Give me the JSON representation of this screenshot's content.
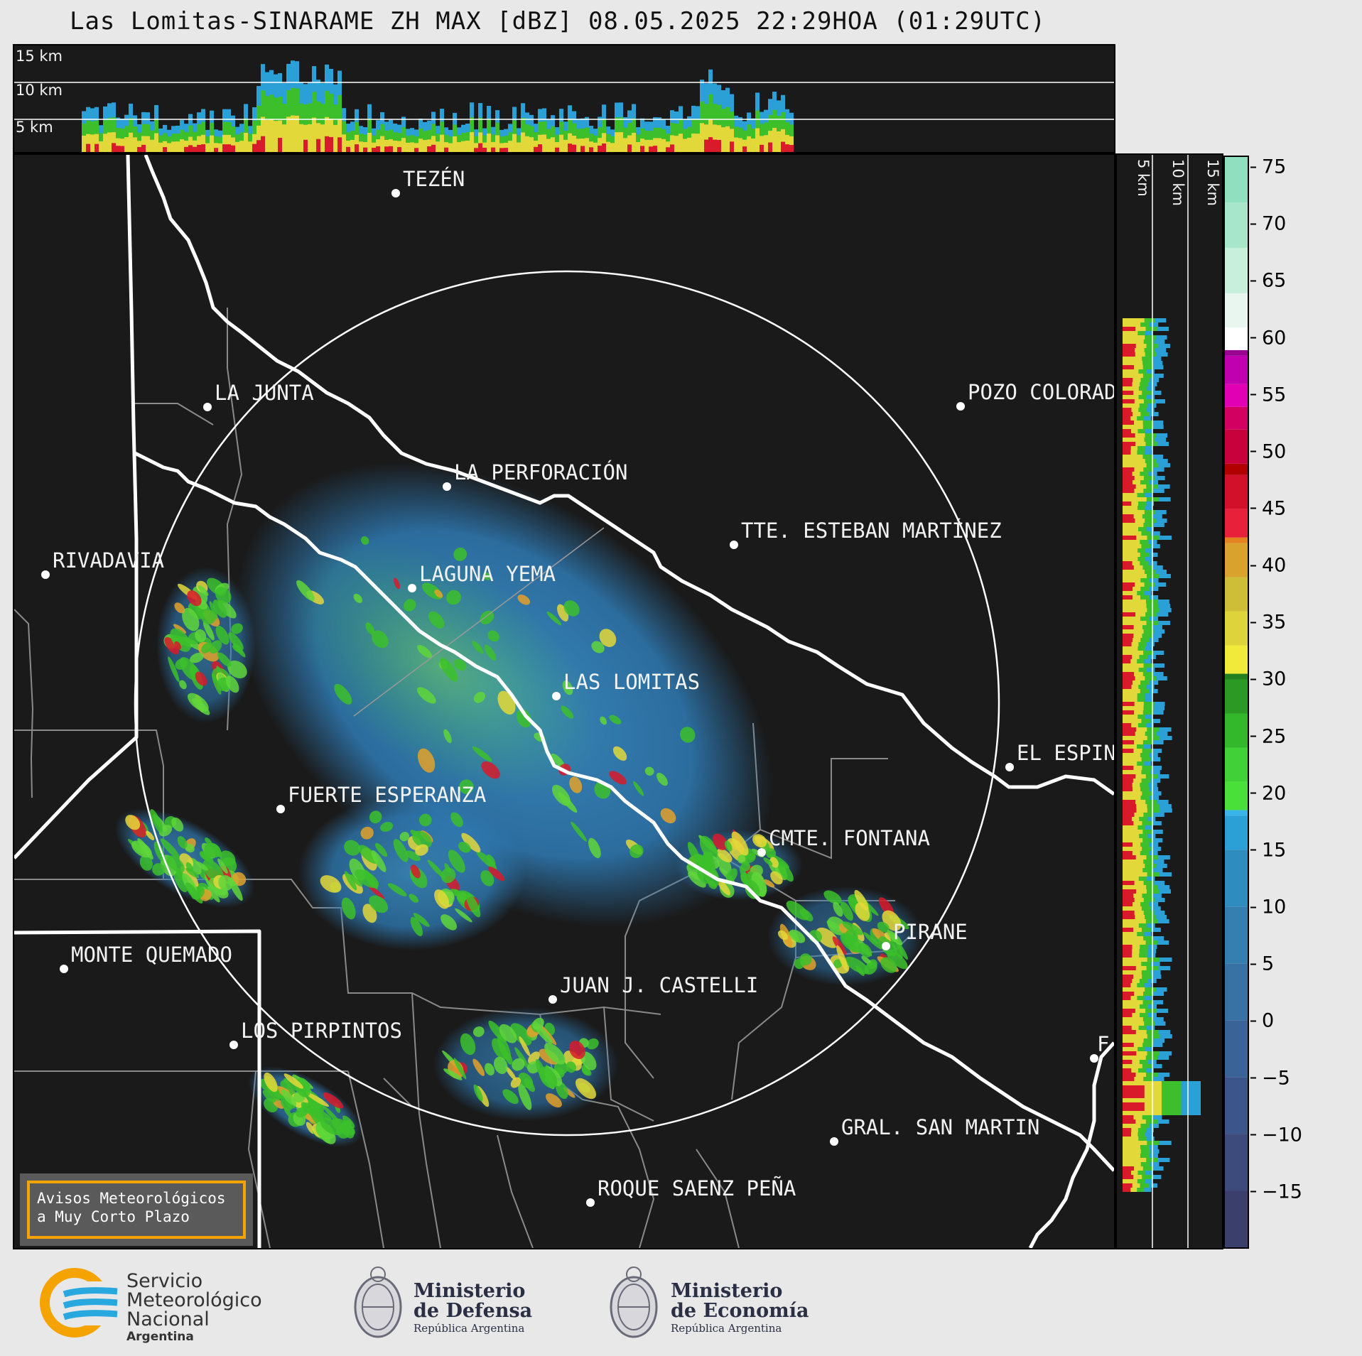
{
  "title": "Las Lomitas-SINARAME ZH MAX [dBZ] 08.05.2025 22:29HOA (01:29UTC)",
  "top_profile": {
    "height_labels": [
      "15 km",
      "10 km",
      "5 km"
    ]
  },
  "side_profile": {
    "height_labels": [
      "5 km",
      "10 km",
      "15 km"
    ]
  },
  "map": {
    "radar_site": "LAS LOMITAS",
    "cities": [
      {
        "name": "TEZÉN"
      },
      {
        "name": "LA JUNTA"
      },
      {
        "name": "POZO COLORAD"
      },
      {
        "name": "LA PERFORACIÓN"
      },
      {
        "name": "TTE. ESTEBAN MARTÍNEZ"
      },
      {
        "name": "RIVADAVIA"
      },
      {
        "name": "LAGUNA YEMA"
      },
      {
        "name": "LAS LOMITAS"
      },
      {
        "name": "EL ESPIN"
      },
      {
        "name": "FUERTE ESPERANZA"
      },
      {
        "name": "CMTE. FONTANA"
      },
      {
        "name": "PIRANE"
      },
      {
        "name": "MONTE QUEMADO"
      },
      {
        "name": "JUAN J. CASTELLI"
      },
      {
        "name": "LOS PIRPINTOS"
      },
      {
        "name": "GRAL. SAN MARTIN"
      },
      {
        "name": "ROQUE SAENZ PEÑA"
      },
      {
        "name": "F"
      }
    ]
  },
  "colorbar": {
    "unit": "dBZ",
    "ticks": [
      "75",
      "70",
      "65",
      "60",
      "55",
      "50",
      "45",
      "40",
      "35",
      "30",
      "25",
      "20",
      "15",
      "10",
      "5",
      "0",
      "−5",
      "−10",
      "−15"
    ],
    "range": [
      -20,
      76
    ]
  },
  "warning": {
    "line1": "Avisos Meteorológicos",
    "line2": "a Muy Corto Plazo"
  },
  "footer": {
    "smn": {
      "line1": "Servicio",
      "line2": "Meteorológico",
      "line3": "Nacional",
      "line4": "Argentina"
    },
    "defensa": {
      "line1": "Ministerio",
      "line2": "de Defensa",
      "line3": "República Argentina"
    },
    "economia": {
      "line1": "Ministerio",
      "line2": "de Economía",
      "line3": "República Argentina"
    }
  },
  "colors": {
    "background": "#1a1a1a",
    "frame": "#e8e8e8",
    "warning_border": "#f4a300",
    "boundary": "#ffffff",
    "dept_line": "#8a8a8a"
  }
}
